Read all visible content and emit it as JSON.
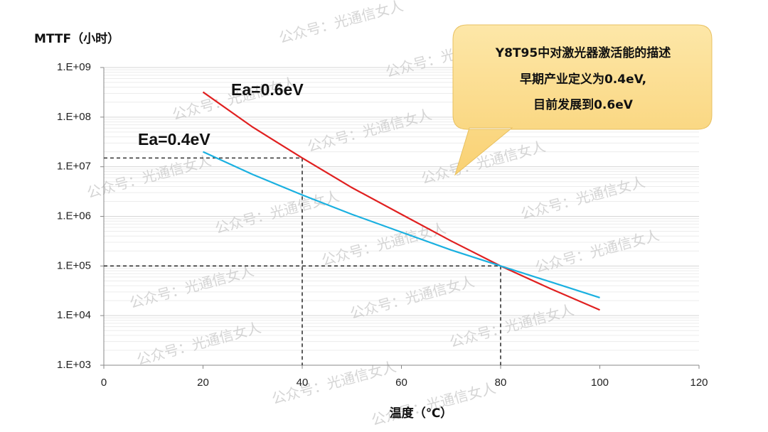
{
  "chart_data": {
    "type": "line",
    "y_title": "MTTF（小时）",
    "x_title": "温度（℃）",
    "log_y": true,
    "grid": true,
    "minor_grid": true,
    "x": [
      20,
      30,
      40,
      50,
      60,
      70,
      80,
      90,
      100
    ],
    "series": [
      {
        "name": "Ea=0.6eV",
        "color": "#e02020",
        "values": [
          320000000,
          63000000,
          15000000,
          3800000,
          1100000,
          320000,
          100000,
          35000,
          13000
        ]
      },
      {
        "name": "Ea=0.4eV",
        "color": "#1ab0e0",
        "values": [
          20000000,
          7000000,
          2700000,
          1100000,
          480000,
          210000,
          100000,
          48000,
          23000
        ]
      }
    ],
    "guides": [
      {
        "x": 40,
        "y": 15000000
      },
      {
        "x": 80,
        "y": 100000
      }
    ],
    "xlim": [
      0,
      120
    ],
    "xticks": [
      0,
      20,
      40,
      60,
      80,
      100,
      120
    ],
    "ylim": [
      1000,
      1000000000
    ],
    "yticks": [
      {
        "value": 1000,
        "label": "1.E+03"
      },
      {
        "value": 10000,
        "label": "1.E+04"
      },
      {
        "value": 100000,
        "label": "1.E+05"
      },
      {
        "value": 1000000,
        "label": "1.E+06"
      },
      {
        "value": 10000000,
        "label": "1.E+07"
      },
      {
        "value": 100000000,
        "label": "1.E+08"
      },
      {
        "value": 1000000000,
        "label": "1.E+09"
      }
    ],
    "callout": [
      "Y8T95中对激光器激活能的描述",
      "早期产业定义为0.4eV,",
      "目前发展到0.6eV"
    ],
    "watermark": "公众号：光通信女人"
  }
}
